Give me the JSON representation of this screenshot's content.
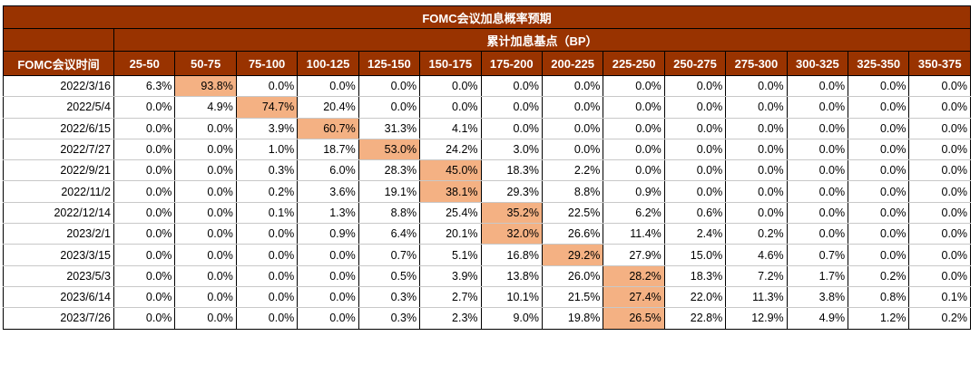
{
  "table": {
    "title": "FOMC会议加息概率预期",
    "subtitle": "累计加息基点（BP）",
    "row_header": "FOMC会议时间",
    "columns": [
      "25-50",
      "50-75",
      "75-100",
      "100-125",
      "125-150",
      "150-175",
      "175-200",
      "200-225",
      "225-250",
      "250-275",
      "275-300",
      "300-325",
      "325-350",
      "350-375"
    ],
    "highlight_color": "#f4b183",
    "header_color": "#993300",
    "rows": [
      {
        "date": "2022/3/16",
        "values": [
          "6.3%",
          "93.8%",
          "0.0%",
          "0.0%",
          "0.0%",
          "0.0%",
          "0.0%",
          "0.0%",
          "0.0%",
          "0.0%",
          "0.0%",
          "0.0%",
          "0.0%",
          "0.0%"
        ],
        "max_index": 1
      },
      {
        "date": "2022/5/4",
        "values": [
          "0.0%",
          "4.9%",
          "74.7%",
          "20.4%",
          "0.0%",
          "0.0%",
          "0.0%",
          "0.0%",
          "0.0%",
          "0.0%",
          "0.0%",
          "0.0%",
          "0.0%",
          "0.0%"
        ],
        "max_index": 2
      },
      {
        "date": "2022/6/15",
        "values": [
          "0.0%",
          "0.0%",
          "3.9%",
          "60.7%",
          "31.3%",
          "4.1%",
          "0.0%",
          "0.0%",
          "0.0%",
          "0.0%",
          "0.0%",
          "0.0%",
          "0.0%",
          "0.0%"
        ],
        "max_index": 3
      },
      {
        "date": "2022/7/27",
        "values": [
          "0.0%",
          "0.0%",
          "1.0%",
          "18.7%",
          "53.0%",
          "24.2%",
          "3.0%",
          "0.0%",
          "0.0%",
          "0.0%",
          "0.0%",
          "0.0%",
          "0.0%",
          "0.0%"
        ],
        "max_index": 4
      },
      {
        "date": "2022/9/21",
        "values": [
          "0.0%",
          "0.0%",
          "0.3%",
          "6.0%",
          "28.3%",
          "45.0%",
          "18.3%",
          "2.2%",
          "0.0%",
          "0.0%",
          "0.0%",
          "0.0%",
          "0.0%",
          "0.0%"
        ],
        "max_index": 5
      },
      {
        "date": "2022/11/2",
        "values": [
          "0.0%",
          "0.0%",
          "0.2%",
          "3.6%",
          "19.1%",
          "38.1%",
          "29.3%",
          "8.8%",
          "0.9%",
          "0.0%",
          "0.0%",
          "0.0%",
          "0.0%",
          "0.0%"
        ],
        "max_index": 5
      },
      {
        "date": "2022/12/14",
        "values": [
          "0.0%",
          "0.0%",
          "0.1%",
          "1.3%",
          "8.8%",
          "25.4%",
          "35.2%",
          "22.5%",
          "6.2%",
          "0.6%",
          "0.0%",
          "0.0%",
          "0.0%",
          "0.0%"
        ],
        "max_index": 6
      },
      {
        "date": "2023/2/1",
        "values": [
          "0.0%",
          "0.0%",
          "0.0%",
          "0.9%",
          "6.4%",
          "20.1%",
          "32.0%",
          "26.6%",
          "11.4%",
          "2.4%",
          "0.2%",
          "0.0%",
          "0.0%",
          "0.0%"
        ],
        "max_index": 6
      },
      {
        "date": "2023/3/15",
        "values": [
          "0.0%",
          "0.0%",
          "0.0%",
          "0.0%",
          "0.7%",
          "5.1%",
          "16.8%",
          "29.2%",
          "27.9%",
          "15.0%",
          "4.6%",
          "0.7%",
          "0.0%",
          "0.0%"
        ],
        "max_index": 7
      },
      {
        "date": "2023/5/3",
        "values": [
          "0.0%",
          "0.0%",
          "0.0%",
          "0.0%",
          "0.5%",
          "3.9%",
          "13.8%",
          "26.0%",
          "28.2%",
          "18.3%",
          "7.2%",
          "1.7%",
          "0.2%",
          "0.0%"
        ],
        "max_index": 8
      },
      {
        "date": "2023/6/14",
        "values": [
          "0.0%",
          "0.0%",
          "0.0%",
          "0.0%",
          "0.3%",
          "2.7%",
          "10.1%",
          "21.5%",
          "27.4%",
          "22.0%",
          "11.3%",
          "3.8%",
          "0.8%",
          "0.1%"
        ],
        "max_index": 8
      },
      {
        "date": "2023/7/26",
        "values": [
          "0.0%",
          "0.0%",
          "0.0%",
          "0.0%",
          "0.3%",
          "2.3%",
          "9.0%",
          "19.8%",
          "26.5%",
          "22.8%",
          "12.9%",
          "4.9%",
          "1.2%",
          "0.2%"
        ],
        "max_index": 8
      }
    ]
  }
}
